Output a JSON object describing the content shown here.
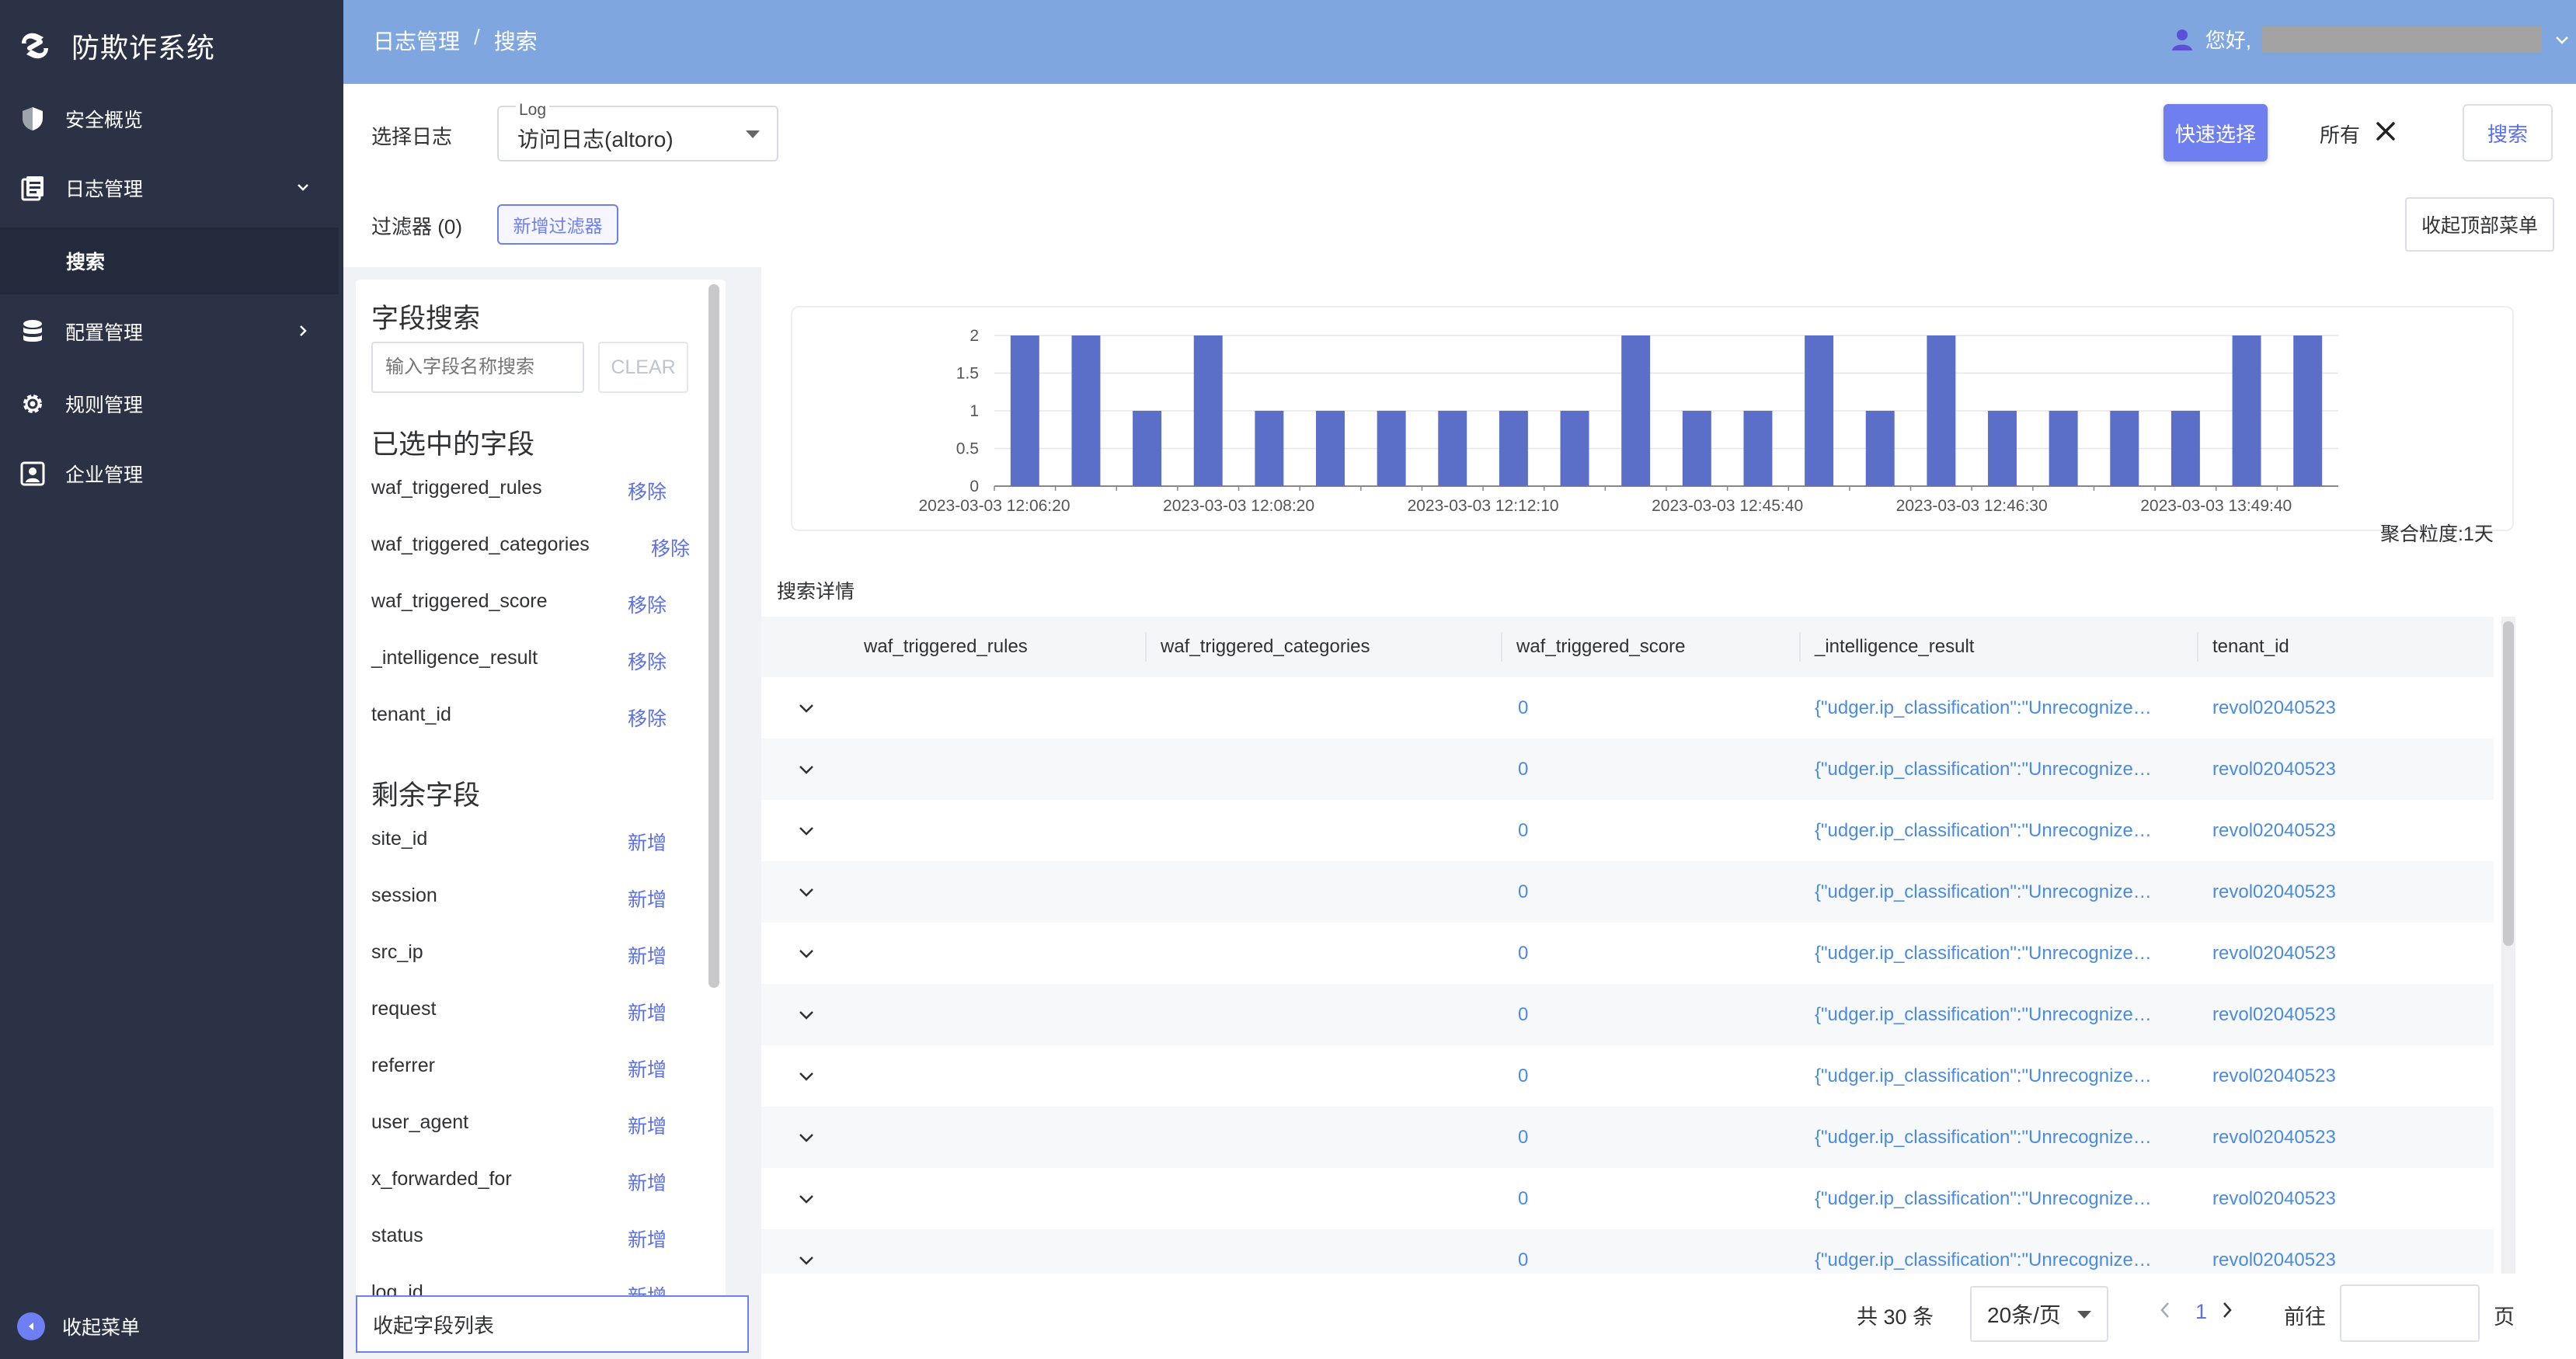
{
  "app": {
    "name": "防欺诈系统"
  },
  "sidebar": {
    "items": [
      {
        "label": "安全概览",
        "icon": "shield-icon"
      },
      {
        "label": "日志管理",
        "icon": "log-icon",
        "expanded": true,
        "children": [
          {
            "label": "搜索",
            "active": true
          }
        ]
      },
      {
        "label": "配置管理",
        "icon": "database-icon"
      },
      {
        "label": "规则管理",
        "icon": "gear-icon"
      },
      {
        "label": "企业管理",
        "icon": "user-card-icon"
      }
    ],
    "collapse_label": "收起菜单"
  },
  "header": {
    "breadcrumb": [
      "日志管理",
      "搜索"
    ],
    "greeting": "您好,"
  },
  "toolbar": {
    "select_log_label": "选择日志",
    "log_select_legend": "Log",
    "log_select_value": "访问日志(altoro)",
    "quick_select_label": "快速选择",
    "range_label": "所有",
    "search_label": "搜索",
    "filter_label": "过滤器 (0)",
    "add_filter_label": "新增过滤器",
    "collapse_top_label": "收起顶部菜单"
  },
  "field_panel": {
    "search_title": "字段搜索",
    "search_placeholder": "输入字段名称搜索",
    "clear_label": "CLEAR",
    "selected_title": "已选中的字段",
    "remove_label": "移除",
    "selected_fields": [
      "waf_triggered_rules",
      "waf_triggered_categories",
      "waf_triggered_score",
      "_intelligence_result",
      "tenant_id"
    ],
    "remaining_title": "剩余字段",
    "add_label": "新增",
    "remaining_fields": [
      "site_id",
      "session",
      "src_ip",
      "request",
      "referrer",
      "user_agent",
      "x_forwarded_for",
      "status",
      "log_id"
    ],
    "collapse_label": "收起字段列表"
  },
  "chart_data": {
    "type": "bar",
    "values": [
      2,
      2,
      1,
      2,
      1,
      1,
      1,
      1,
      1,
      1,
      2,
      1,
      1,
      2,
      1,
      2,
      1,
      1,
      1,
      1,
      2,
      2
    ],
    "tick_labels": [
      "2023-03-03 12:06:20",
      "2023-03-03 12:08:20",
      "2023-03-03 12:12:10",
      "2023-03-03 12:45:40",
      "2023-03-03 12:46:30",
      "2023-03-03 13:49:40"
    ],
    "y_ticks": [
      "0",
      "0.5",
      "1",
      "1.5",
      "2"
    ],
    "ylim": [
      0,
      2
    ],
    "grid": true,
    "bar_color": "#5b6fc9"
  },
  "chart_footer": {
    "aggregation_label": "聚合粒度:1天"
  },
  "table": {
    "section_label": "搜索详情",
    "columns": [
      "waf_triggered_rules",
      "waf_triggered_categories",
      "waf_triggered_score",
      "_intelligence_result",
      "tenant_id"
    ],
    "rows": [
      {
        "score": "0",
        "intel": "{\"udger.ip_classification\":\"Unrecognize…",
        "tenant": "revol02040523"
      },
      {
        "score": "0",
        "intel": "{\"udger.ip_classification\":\"Unrecognize…",
        "tenant": "revol02040523"
      },
      {
        "score": "0",
        "intel": "{\"udger.ip_classification\":\"Unrecognize…",
        "tenant": "revol02040523"
      },
      {
        "score": "0",
        "intel": "{\"udger.ip_classification\":\"Unrecognize…",
        "tenant": "revol02040523"
      },
      {
        "score": "0",
        "intel": "{\"udger.ip_classification\":\"Unrecognize…",
        "tenant": "revol02040523"
      },
      {
        "score": "0",
        "intel": "{\"udger.ip_classification\":\"Unrecognize…",
        "tenant": "revol02040523"
      },
      {
        "score": "0",
        "intel": "{\"udger.ip_classification\":\"Unrecognize…",
        "tenant": "revol02040523"
      },
      {
        "score": "0",
        "intel": "{\"udger.ip_classification\":\"Unrecognize…",
        "tenant": "revol02040523"
      },
      {
        "score": "0",
        "intel": "{\"udger.ip_classification\":\"Unrecognize…",
        "tenant": "revol02040523"
      },
      {
        "score": "0",
        "intel": "{\"udger.ip_classification\":\"Unrecognize…",
        "tenant": "revol02040523"
      }
    ]
  },
  "pagination": {
    "total_label": "共 30 条",
    "page_size": "20条/页",
    "current_page": "1",
    "goto_label": "前往",
    "page_suffix": "页"
  }
}
